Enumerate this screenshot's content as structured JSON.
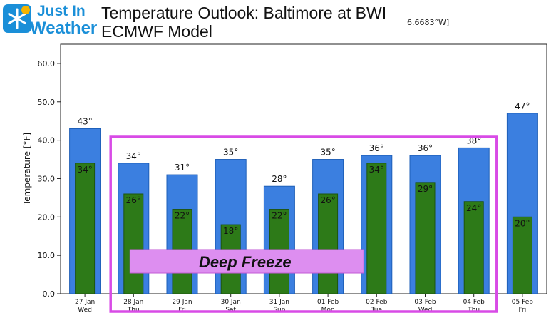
{
  "header": {
    "logo_line1": "Just In",
    "logo_line2": "Weather",
    "title_line1": "Temperature Outlook: Baltimore at BWI",
    "title_line2": "ECMWF Model",
    "coordinate_fragment": "6.6683°W]"
  },
  "annotation": {
    "label": "Deep Freeze",
    "box_color": "#d84be6",
    "label_bg": "#dd8ef0"
  },
  "colors": {
    "high_bar": "#3b7fe0",
    "low_bar": "#2d7a18"
  },
  "chart_data": {
    "type": "bar",
    "ylabel": "Temperature [°F]",
    "ylim": [
      0,
      65
    ],
    "yticks": [
      "0.0",
      "10.0",
      "20.0",
      "30.0",
      "40.0",
      "50.0",
      "60.0"
    ],
    "ytick_values": [
      0,
      10,
      20,
      30,
      40,
      50,
      60
    ],
    "categories": [
      {
        "date": "27 Jan",
        "day": "Wed"
      },
      {
        "date": "28 Jan",
        "day": "Thu"
      },
      {
        "date": "29 Jan",
        "day": "Fri"
      },
      {
        "date": "30 Jan",
        "day": "Sat"
      },
      {
        "date": "31 Jan",
        "day": "Sun"
      },
      {
        "date": "01 Feb",
        "day": "Mon"
      },
      {
        "date": "02 Feb",
        "day": "Tue"
      },
      {
        "date": "03 Feb",
        "day": "Wed"
      },
      {
        "date": "04 Feb",
        "day": "Thu"
      },
      {
        "date": "05 Feb",
        "day": "Fri"
      }
    ],
    "series": [
      {
        "values": [
          43,
          34,
          31,
          35,
          28,
          35,
          36,
          36,
          38,
          47
        ],
        "labels": [
          "43°",
          "34°",
          "31°",
          "35°",
          "28°",
          "35°",
          "36°",
          "36°",
          "38°",
          "47°"
        ]
      },
      {
        "values": [
          34,
          26,
          22,
          18,
          22,
          26,
          34,
          29,
          24,
          20
        ],
        "labels": [
          "34°",
          "26°",
          "22°",
          "18°",
          "22°",
          "26°",
          "34°",
          "29°",
          "24°",
          "20°"
        ]
      }
    ],
    "grid": false,
    "annotation_range": [
      "28 Jan",
      "04 Feb"
    ]
  }
}
